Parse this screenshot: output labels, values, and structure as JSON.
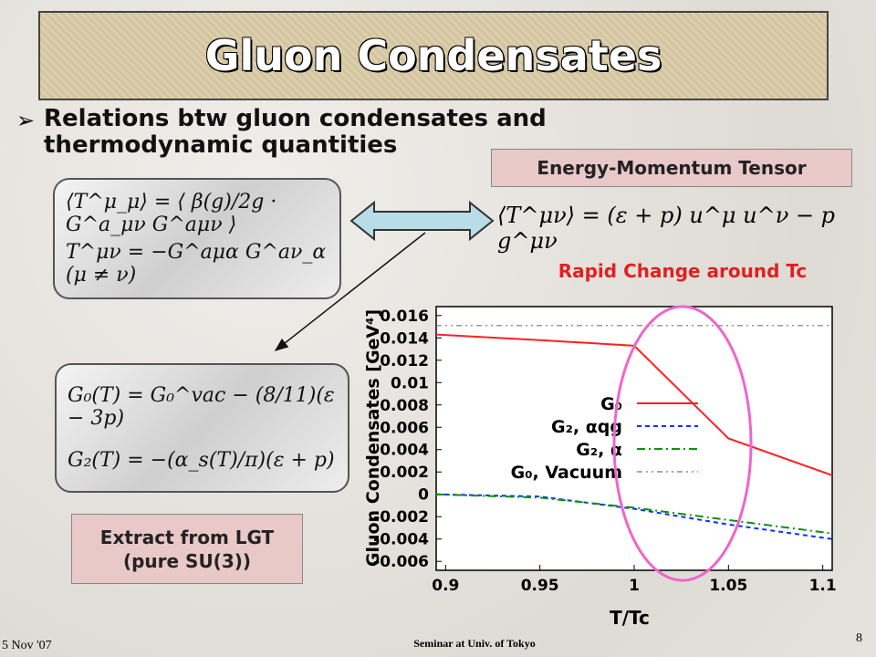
{
  "header": {
    "title": "Gluon Condensates"
  },
  "bullet": "Relations btw gluon condensates and thermodynamic quantities",
  "tensor_box": "Energy-Momentum Tensor",
  "equations": {
    "trace": "⟨T^μ_μ⟩ = ⟨ β(g)/2g · G^a_μν G^aμν ⟩",
    "offdiag": "T^μν = −G^aμα G^aν_α  (μ ≠ ν)",
    "tensor": "⟨T^μν⟩ = (ε + p) u^μ u^ν − p g^μν",
    "g0": "G₀(T) = G₀^vac − (8/11)(ε − 3p)",
    "g2": "G₂(T) = −(α_s(T)/π)(ε + p)"
  },
  "extract_box": "Extract from LGT (pure SU(3))",
  "footer": {
    "date": "5 Nov '07",
    "venue": "Seminar at Univ. of Tokyo",
    "page": "8"
  },
  "chart_data": {
    "type": "line",
    "annotation": "Rapid Change around Tc",
    "x_label": "T/Tc",
    "y_label": "Gluon Condensates [GeV⁴]",
    "x": [
      0.895,
      0.95,
      1.0,
      1.05,
      1.105
    ],
    "series": [
      {
        "name": "G₀",
        "color": "#ff2020",
        "style": "solid",
        "values": [
          0.0143,
          0.0138,
          0.0133,
          0.005,
          0.0017
        ]
      },
      {
        "name": "G₂, αqg",
        "color": "#1030ff",
        "style": "dashed",
        "values": [
          0,
          -0.0002,
          -0.0013,
          -0.0027,
          -0.004
        ]
      },
      {
        "name": "G₂, α",
        "color": "#109010",
        "style": "dashdot",
        "values": [
          0,
          -0.0003,
          -0.0012,
          -0.0023,
          -0.0035
        ]
      },
      {
        "name": "G₀, Vacuum",
        "color": "#777777",
        "style": "dashdotdot",
        "values": [
          0.0151,
          0.0151,
          0.0151,
          0.0151,
          0.0151
        ]
      }
    ],
    "xlim": [
      0.895,
      1.105
    ],
    "ylim": [
      -0.0068,
      0.0168
    ],
    "xticks": [
      0.9,
      0.95,
      1,
      1.05,
      1.1
    ],
    "yticks": [
      0.016,
      0.014,
      0.012,
      0.01,
      0.008,
      0.006,
      0.004,
      0.002,
      0,
      -0.002,
      -0.004,
      -0.006
    ]
  }
}
